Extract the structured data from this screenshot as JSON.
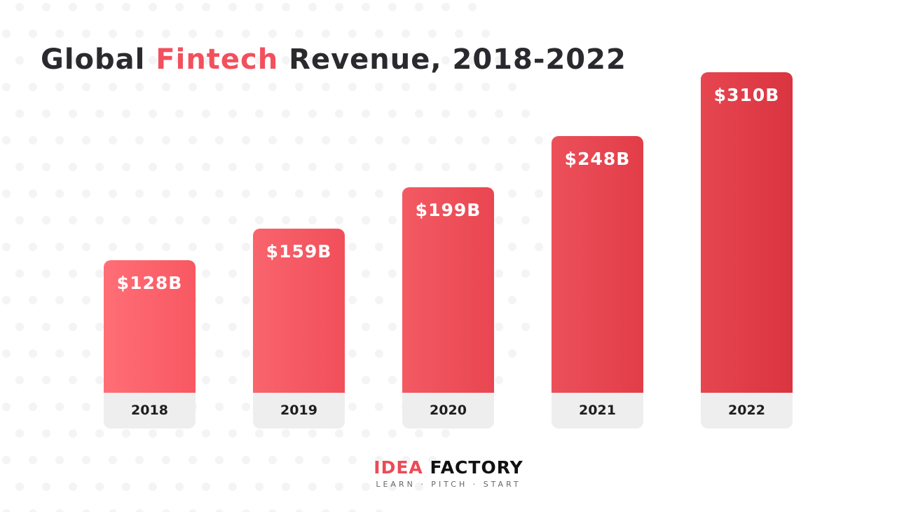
{
  "title": {
    "prefix": "Global ",
    "highlight": "Fintech",
    "suffix": " Revenue, 2018-2022"
  },
  "colors": {
    "accent": "#f2505d",
    "bar_light": "#ff6b74",
    "bar_dark": "#dc3545",
    "category_bg": "#eeeeee",
    "text": "#2a2a2e"
  },
  "chart_data": {
    "type": "bar",
    "title": "Global Fintech Revenue, 2018-2022",
    "categories": [
      "2018",
      "2019",
      "2020",
      "2021",
      "2022"
    ],
    "values": [
      128,
      159,
      199,
      248,
      310
    ],
    "data_labels": [
      "$128B",
      "$159B",
      "$199B",
      "$248B",
      "$310B"
    ],
    "unit": "billion USD",
    "ylim": [
      0,
      310
    ],
    "grid": false,
    "legend": "none"
  },
  "logo": {
    "part1": "IDEA",
    "part2": "FACTORY",
    "tagline": "LEARN · PITCH · START"
  }
}
